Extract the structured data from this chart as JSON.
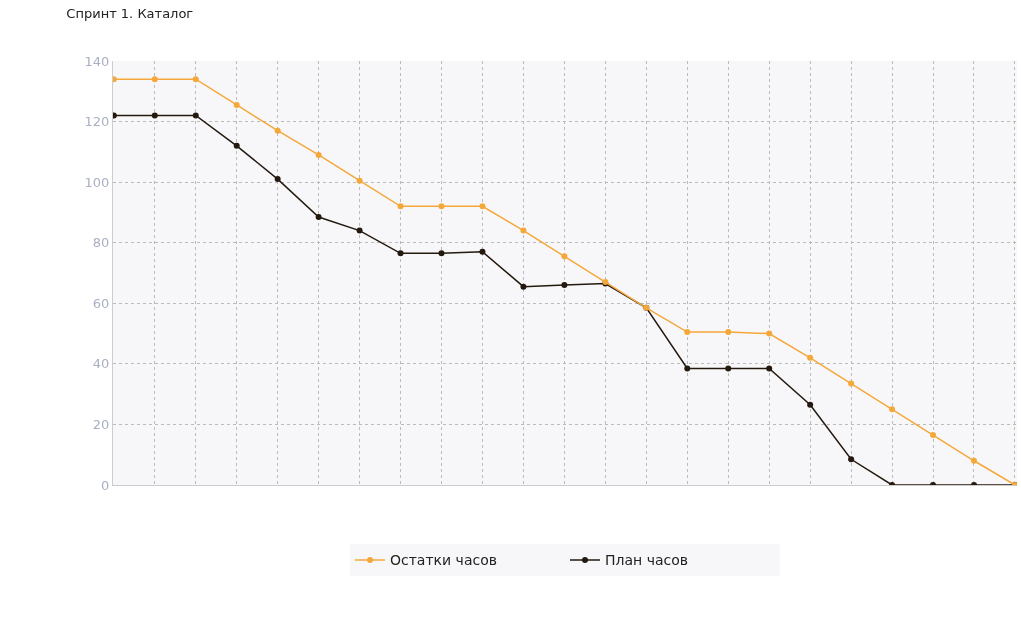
{
  "chart_data": {
    "type": "line",
    "title": "Спринт 1. Каталог",
    "categories": [
      null,
      null,
      null,
      null,
      null,
      null,
      null,
      null,
      null,
      null,
      null,
      null,
      null,
      null,
      null,
      null,
      null,
      null,
      null,
      null,
      null,
      null,
      null
    ],
    "series": [
      {
        "name": "Остатки часов",
        "color": "#f5a83a",
        "values": [
          134,
          134,
          134,
          125.5,
          117,
          109,
          100.5,
          92,
          92,
          92,
          84,
          75.5,
          67,
          58.5,
          50.5,
          50.5,
          50,
          42,
          33.5,
          25,
          16.5,
          8,
          0
        ]
      },
      {
        "name": "План часов",
        "color": "#24190f",
        "values": [
          122,
          122,
          122,
          112,
          101,
          88.5,
          84,
          76.5,
          76.5,
          77,
          65.5,
          66,
          66.5,
          58.5,
          38.5,
          38.5,
          38.5,
          26.5,
          8.5,
          0,
          0,
          0,
          0
        ]
      }
    ],
    "ylim": [
      0,
      140
    ],
    "yticks": [
      0,
      20,
      40,
      60,
      80,
      100,
      120,
      140
    ],
    "grid": true,
    "legend": "bottom",
    "marker": "circle",
    "line_style": "solid"
  }
}
